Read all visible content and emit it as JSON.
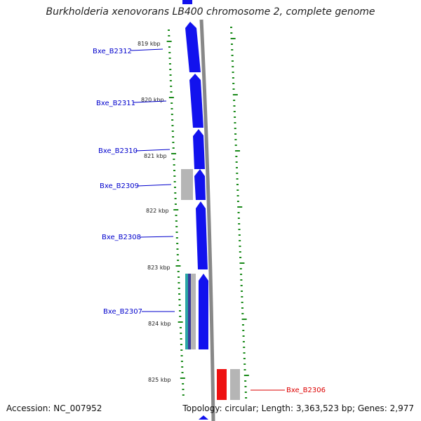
{
  "title": "Burkholderia xenovorans LB400 chromosome 2, complete genome",
  "accession_text": "Accession: NC_007952",
  "summary_text": "Topology: circular; Length: 3,363,523 bp; Genes: 2,977",
  "colors": {
    "forward_gene": "#1212ee",
    "reverse_gene": "#ee1111",
    "label_line_blue": "#0000cc",
    "label_line_red": "#dd0000",
    "tick_green": "#1a8a1a",
    "backbone": "#888888",
    "pseudo_gray": "#b5b5b5",
    "teal": "#2aa6a6"
  },
  "kbp_markers": [
    "819 kbp",
    "820 kbp",
    "821 kbp",
    "822 kbp",
    "823 kbp",
    "824 kbp",
    "825 kbp"
  ],
  "genes": [
    {
      "id": "Bxe_B2312",
      "strand": "forward"
    },
    {
      "id": "Bxe_B2311",
      "strand": "forward"
    },
    {
      "id": "Bxe_B2310",
      "strand": "forward"
    },
    {
      "id": "Bxe_B2309",
      "strand": "forward"
    },
    {
      "id": "Bxe_B2308",
      "strand": "forward"
    },
    {
      "id": "Bxe_B2307",
      "strand": "forward"
    },
    {
      "id": "Bxe_B2306",
      "strand": "reverse"
    }
  ]
}
